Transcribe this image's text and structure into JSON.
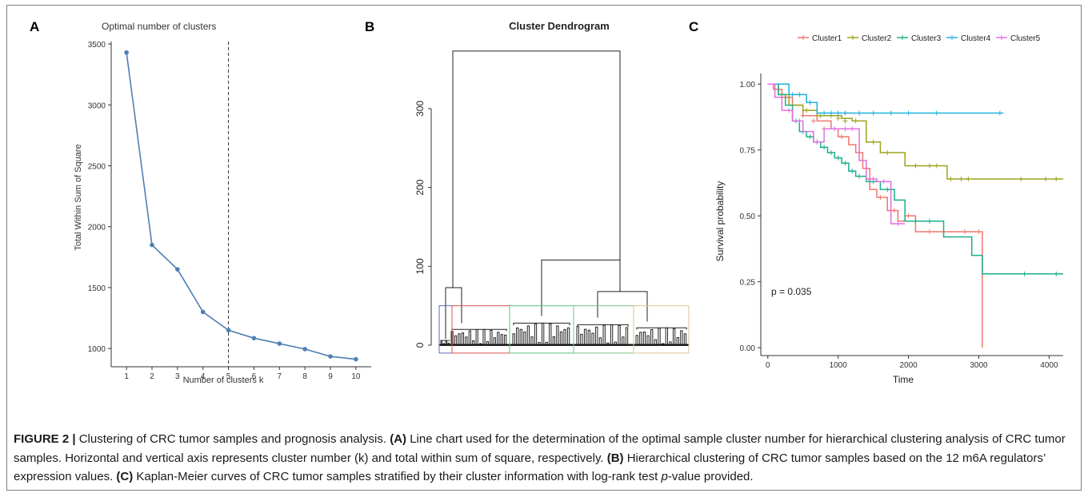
{
  "panels": {
    "a": "A",
    "b": "B",
    "c": "C"
  },
  "chart_data": [
    {
      "type": "line",
      "title": "Optimal number of clusters",
      "xlabel": "Number of clusters k",
      "ylabel": "Total Within Sum of Square",
      "x": [
        1,
        2,
        3,
        4,
        5,
        6,
        7,
        8,
        9,
        10
      ],
      "values": [
        3430,
        1850,
        1650,
        1300,
        1150,
        1085,
        1040,
        995,
        935,
        912
      ],
      "xticks": [
        "1",
        "2",
        "3",
        "4",
        "5",
        "6",
        "7",
        "8",
        "9",
        "10"
      ],
      "yticks": [
        1000,
        1500,
        2000,
        2500,
        3000,
        3500
      ],
      "ylim": [
        850,
        3520
      ],
      "xlim": [
        0.4,
        10.6
      ],
      "vline": 5,
      "color": "#4f7fb3"
    },
    {
      "type": "dendrogram",
      "title": "Cluster Dendrogram",
      "ylim": [
        0,
        380
      ],
      "yticks": [
        0,
        100,
        200,
        300
      ],
      "merge_heights": {
        "root": 373,
        "left_group": 73,
        "right_group": 108,
        "right_left": 37,
        "right_right": 68,
        "right_right_a": 35,
        "right_right_b": 30
      },
      "cluster_colors": [
        "#5b6cc0",
        "#d9534f",
        "#57c47a",
        "#7fbf8f",
        "#d8c48b"
      ]
    },
    {
      "type": "line",
      "subtype": "kaplan-meier",
      "xlabel": "Time",
      "ylabel": "Survival probability",
      "annotation": "p = 0.035",
      "xlim": [
        -100,
        4200
      ],
      "ylim": [
        -0.03,
        1.04
      ],
      "xticks": [
        0,
        1000,
        2000,
        3000,
        4000
      ],
      "yticks": [
        "0.00",
        "0.25",
        "0.50",
        "0.75",
        "1.00"
      ],
      "legend_position": "top",
      "series": [
        {
          "name": "Cluster1",
          "color": "#f0766d",
          "steps": [
            [
              0,
              1.0
            ],
            [
              80,
              0.98
            ],
            [
              200,
              0.95
            ],
            [
              350,
              0.92
            ],
            [
              500,
              0.88
            ],
            [
              700,
              0.86
            ],
            [
              900,
              0.83
            ],
            [
              1000,
              0.8
            ],
            [
              1150,
              0.77
            ],
            [
              1250,
              0.74
            ],
            [
              1350,
              0.68
            ],
            [
              1450,
              0.6
            ],
            [
              1550,
              0.57
            ],
            [
              1700,
              0.52
            ],
            [
              1850,
              0.48
            ],
            [
              1950,
              0.5
            ],
            [
              2100,
              0.44
            ],
            [
              3050,
              0.0
            ]
          ],
          "censor": [
            [
              250,
              0.95
            ],
            [
              500,
              0.88
            ],
            [
              650,
              0.86
            ],
            [
              800,
              0.83
            ],
            [
              1050,
              0.8
            ],
            [
              1300,
              0.74
            ],
            [
              1600,
              0.57
            ],
            [
              1800,
              0.52
            ],
            [
              2000,
              0.5
            ],
            [
              2300,
              0.44
            ],
            [
              2500,
              0.44
            ],
            [
              2800,
              0.44
            ],
            [
              3000,
              0.44
            ]
          ]
        },
        {
          "name": "Cluster2",
          "color": "#9ba31c",
          "steps": [
            [
              0,
              1.0
            ],
            [
              150,
              0.96
            ],
            [
              300,
              0.92
            ],
            [
              500,
              0.9
            ],
            [
              700,
              0.88
            ],
            [
              1050,
              0.87
            ],
            [
              1200,
              0.86
            ],
            [
              1400,
              0.78
            ],
            [
              1600,
              0.74
            ],
            [
              1950,
              0.69
            ],
            [
              2550,
              0.64
            ],
            [
              4200,
              0.64
            ]
          ],
          "censor": [
            [
              350,
              0.92
            ],
            [
              550,
              0.9
            ],
            [
              750,
              0.88
            ],
            [
              900,
              0.88
            ],
            [
              1000,
              0.87
            ],
            [
              1100,
              0.86
            ],
            [
              1250,
              0.86
            ],
            [
              1500,
              0.78
            ],
            [
              1700,
              0.74
            ],
            [
              2100,
              0.69
            ],
            [
              2300,
              0.69
            ],
            [
              2400,
              0.69
            ],
            [
              2600,
              0.64
            ],
            [
              2750,
              0.64
            ],
            [
              2850,
              0.64
            ],
            [
              3600,
              0.64
            ],
            [
              3950,
              0.64
            ],
            [
              4100,
              0.64
            ]
          ]
        },
        {
          "name": "Cluster3",
          "color": "#1ab08a",
          "steps": [
            [
              0,
              1.0
            ],
            [
              150,
              0.96
            ],
            [
              250,
              0.92
            ],
            [
              350,
              0.86
            ],
            [
              450,
              0.82
            ],
            [
              550,
              0.8
            ],
            [
              650,
              0.78
            ],
            [
              750,
              0.76
            ],
            [
              850,
              0.74
            ],
            [
              950,
              0.72
            ],
            [
              1050,
              0.7
            ],
            [
              1150,
              0.67
            ],
            [
              1250,
              0.65
            ],
            [
              1400,
              0.63
            ],
            [
              1600,
              0.6
            ],
            [
              1800,
              0.56
            ],
            [
              1950,
              0.48
            ],
            [
              2500,
              0.42
            ],
            [
              2900,
              0.35
            ],
            [
              3050,
              0.28
            ],
            [
              4200,
              0.28
            ]
          ],
          "censor": [
            [
              400,
              0.86
            ],
            [
              500,
              0.82
            ],
            [
              600,
              0.8
            ],
            [
              700,
              0.78
            ],
            [
              800,
              0.76
            ],
            [
              900,
              0.74
            ],
            [
              1000,
              0.72
            ],
            [
              1100,
              0.7
            ],
            [
              1200,
              0.67
            ],
            [
              1300,
              0.65
            ],
            [
              1500,
              0.63
            ],
            [
              1700,
              0.6
            ],
            [
              2100,
              0.48
            ],
            [
              2300,
              0.48
            ],
            [
              3650,
              0.28
            ],
            [
              4100,
              0.28
            ]
          ]
        },
        {
          "name": "Cluster4",
          "color": "#1fb0e0",
          "steps": [
            [
              0,
              1.0
            ],
            [
              300,
              0.96
            ],
            [
              550,
              0.93
            ],
            [
              700,
              0.89
            ],
            [
              3350,
              0.89
            ]
          ],
          "censor": [
            [
              350,
              0.96
            ],
            [
              450,
              0.96
            ],
            [
              600,
              0.93
            ],
            [
              800,
              0.89
            ],
            [
              900,
              0.89
            ],
            [
              1000,
              0.89
            ],
            [
              1100,
              0.89
            ],
            [
              1300,
              0.89
            ],
            [
              1500,
              0.89
            ],
            [
              1750,
              0.89
            ],
            [
              2000,
              0.89
            ],
            [
              2400,
              0.89
            ],
            [
              3300,
              0.89
            ]
          ]
        },
        {
          "name": "Cluster5",
          "color": "#e06fe0",
          "steps": [
            [
              0,
              1.0
            ],
            [
              100,
              0.95
            ],
            [
              200,
              0.9
            ],
            [
              350,
              0.86
            ],
            [
              500,
              0.82
            ],
            [
              650,
              0.78
            ],
            [
              800,
              0.83
            ],
            [
              1300,
              0.71
            ],
            [
              1400,
              0.64
            ],
            [
              1550,
              0.63
            ],
            [
              1750,
              0.47
            ],
            [
              1950,
              0.47
            ]
          ],
          "censor": [
            [
              300,
              0.9
            ],
            [
              450,
              0.86
            ],
            [
              700,
              0.78
            ],
            [
              950,
              0.83
            ],
            [
              1100,
              0.83
            ],
            [
              1200,
              0.83
            ],
            [
              1500,
              0.64
            ],
            [
              1650,
              0.63
            ],
            [
              1850,
              0.47
            ]
          ]
        }
      ]
    }
  ],
  "caption": {
    "label": "FIGURE 2 |",
    "text_intro": " Clustering of CRC tumor samples and prognosis analysis. ",
    "a_label": "(A)",
    "a_text": " Line chart used for the determination of the optimal sample cluster number for hierarchical clustering analysis of CRC tumor samples. Horizontal and vertical axis represents cluster number (k) and total within sum of square, respectively. ",
    "b_label": "(B)",
    "b_text": " Hierarchical clustering of CRC tumor samples based on the 12 m6A regulators’ expression values. ",
    "c_label": "(C)",
    "c_text_1": " Kaplan-Meier curves of CRC tumor samples stratified by their cluster information with log-rank test ",
    "c_pvalue": "p",
    "c_text_2": "-value provided."
  }
}
